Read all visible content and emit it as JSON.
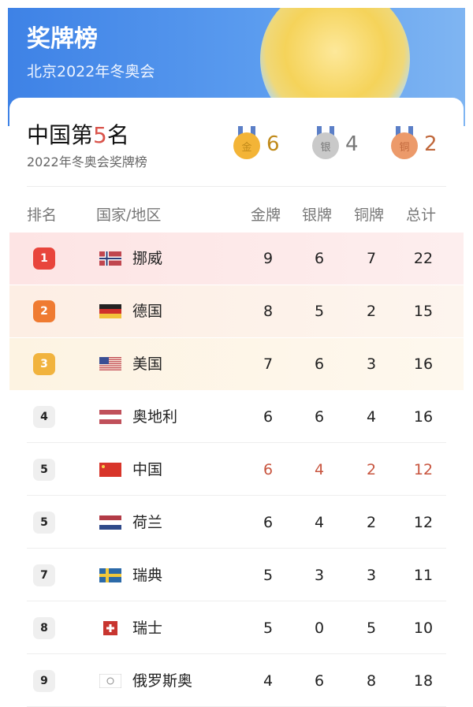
{
  "banner": {
    "title": "奖牌榜",
    "subtitle": "北京2022年冬奥会"
  },
  "summary": {
    "title_prefix": "中国第",
    "rank": "5",
    "title_suffix": "名",
    "subtitle": "2022年冬奥会奖牌榜",
    "medals": [
      {
        "label": "金",
        "count": "6",
        "color": "#f3b437",
        "text": "#c08a1a"
      },
      {
        "label": "银",
        "count": "4",
        "color": "#c9c9c9",
        "text": "#777"
      },
      {
        "label": "铜",
        "count": "2",
        "color": "#ec9a6a",
        "text": "#c0683c"
      }
    ]
  },
  "table": {
    "headers": [
      "排名",
      "国家/地区",
      "金牌",
      "银牌",
      "铜牌",
      "总计"
    ],
    "rows": [
      {
        "rank": "1",
        "country": "挪威",
        "flag": "norway-flag",
        "gold": "9",
        "silver": "6",
        "bronze": "7",
        "total": "22"
      },
      {
        "rank": "2",
        "country": "德国",
        "flag": "germany-flag",
        "gold": "8",
        "silver": "5",
        "bronze": "2",
        "total": "15"
      },
      {
        "rank": "3",
        "country": "美国",
        "flag": "usa-flag",
        "gold": "7",
        "silver": "6",
        "bronze": "3",
        "total": "16"
      },
      {
        "rank": "4",
        "country": "奥地利",
        "flag": "austria-flag",
        "gold": "6",
        "silver": "6",
        "bronze": "4",
        "total": "16"
      },
      {
        "rank": "5",
        "country": "中国",
        "flag": "china-flag",
        "gold": "6",
        "silver": "4",
        "bronze": "2",
        "total": "12",
        "highlight": true
      },
      {
        "rank": "5",
        "country": "荷兰",
        "flag": "netherlands-flag",
        "gold": "6",
        "silver": "4",
        "bronze": "2",
        "total": "12"
      },
      {
        "rank": "7",
        "country": "瑞典",
        "flag": "sweden-flag",
        "gold": "5",
        "silver": "3",
        "bronze": "3",
        "total": "11"
      },
      {
        "rank": "8",
        "country": "瑞士",
        "flag": "switzerland-flag",
        "gold": "5",
        "silver": "0",
        "bronze": "5",
        "total": "10"
      },
      {
        "rank": "9",
        "country": "俄罗斯奥",
        "flag": "roc-flag",
        "gold": "4",
        "silver": "6",
        "bronze": "8",
        "total": "18"
      }
    ]
  },
  "colors": {
    "rank1": "#e8453c",
    "rank2": "#ef7b32",
    "rank3": "#f1b33e",
    "highlight": "#c8553f"
  }
}
